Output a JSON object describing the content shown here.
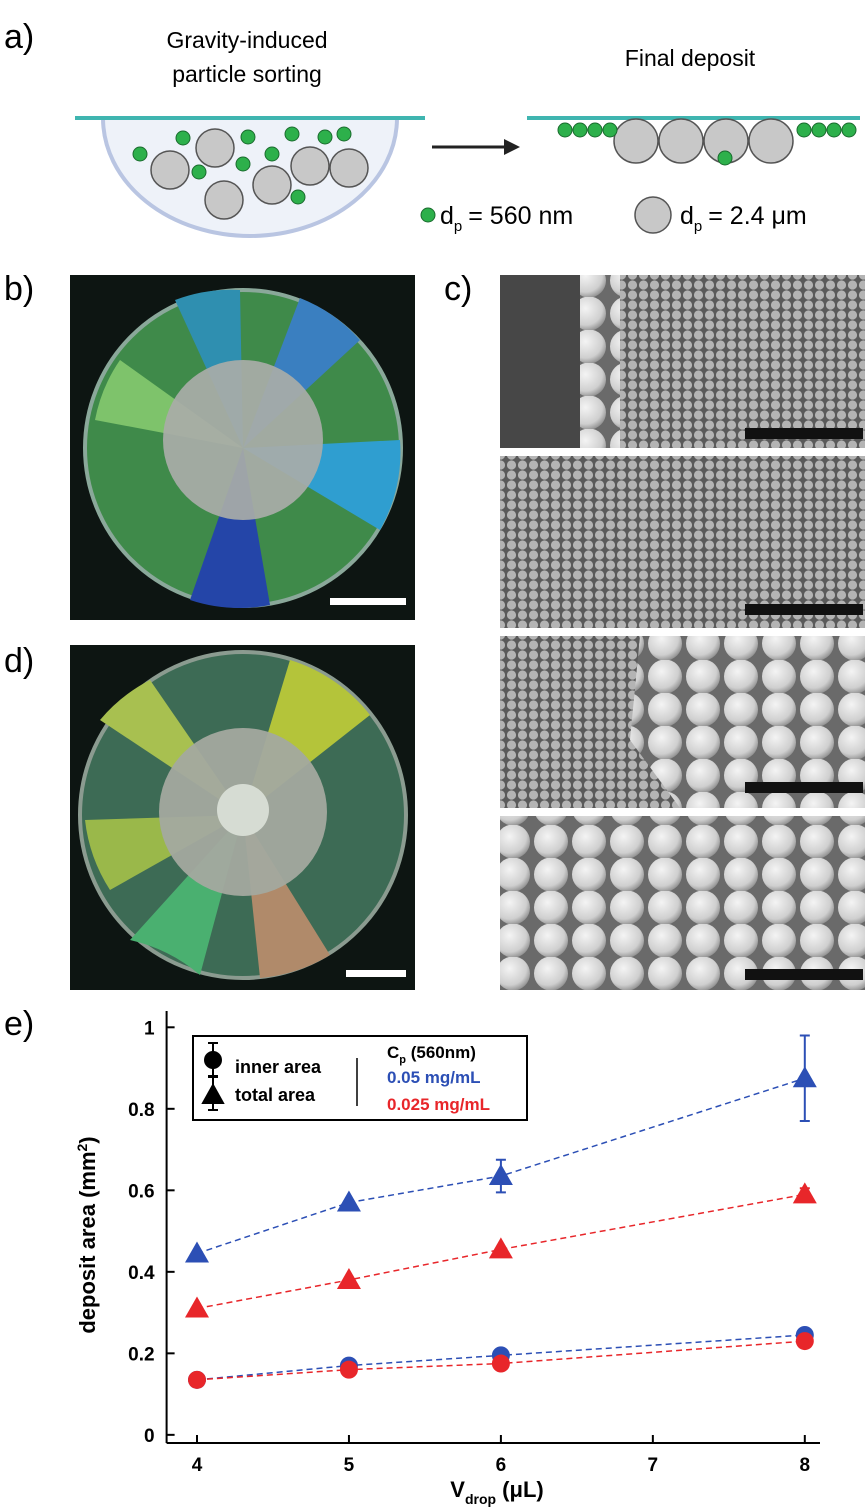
{
  "panel_labels": {
    "a": "a)",
    "b": "b)",
    "c": "c)",
    "d": "d)",
    "e": "e)"
  },
  "diagram": {
    "left_title": [
      "Gravity-induced",
      "particle sorting"
    ],
    "right_title": "Final deposit",
    "legend": [
      {
        "symbol": "d",
        "subscript": "p",
        "text": "= 560 nm"
      },
      {
        "symbol": "d",
        "subscript": "p",
        "text": "= 2.4 μm"
      }
    ]
  },
  "chart_data": {
    "type": "line",
    "line_style": "dashed",
    "x": [
      4,
      5,
      6,
      8
    ],
    "xlim": [
      3.8,
      8.1
    ],
    "xticks": [
      4,
      5,
      6,
      7,
      8
    ],
    "ylim": [
      -0.02,
      1.04
    ],
    "yticks": [
      0,
      0.2,
      0.4,
      0.6,
      0.8,
      1
    ],
    "xlabel": {
      "text": "V",
      "subscript": "drop",
      "unit": " (μL)"
    },
    "ylabel": {
      "text": "deposit area (mm",
      "superscript": "2",
      "close": ")"
    },
    "legend": {
      "markers": [
        {
          "marker": "circle",
          "label": "inner area"
        },
        {
          "marker": "triangle",
          "label": "total area"
        }
      ],
      "title": {
        "text": "C",
        "subscript": "p",
        "unit": " (560nm)"
      },
      "entries": [
        {
          "label": "0.05 mg/mL",
          "color": "#2c4fb5"
        },
        {
          "label": "0.025 mg/mL",
          "color": "#e8262a"
        }
      ]
    },
    "series": [
      {
        "marker": "triangle",
        "color": "#2c4fb5",
        "values": [
          0.445,
          0.57,
          0.635,
          0.875
        ],
        "errors": [
          null,
          null,
          0.04,
          0.105
        ]
      },
      {
        "marker": "triangle",
        "color": "#e8262a",
        "values": [
          0.31,
          0.38,
          0.455,
          0.59
        ],
        "errors": [
          null,
          null,
          null,
          0.015
        ]
      },
      {
        "marker": "circle",
        "color": "#2c4fb5",
        "values": [
          0.135,
          0.17,
          0.195,
          0.245
        ],
        "errors": [
          null,
          null,
          null,
          null
        ]
      },
      {
        "marker": "circle",
        "color": "#e8262a",
        "values": [
          0.135,
          0.16,
          0.175,
          0.23
        ],
        "errors": [
          null,
          null,
          null,
          null
        ]
      }
    ]
  }
}
